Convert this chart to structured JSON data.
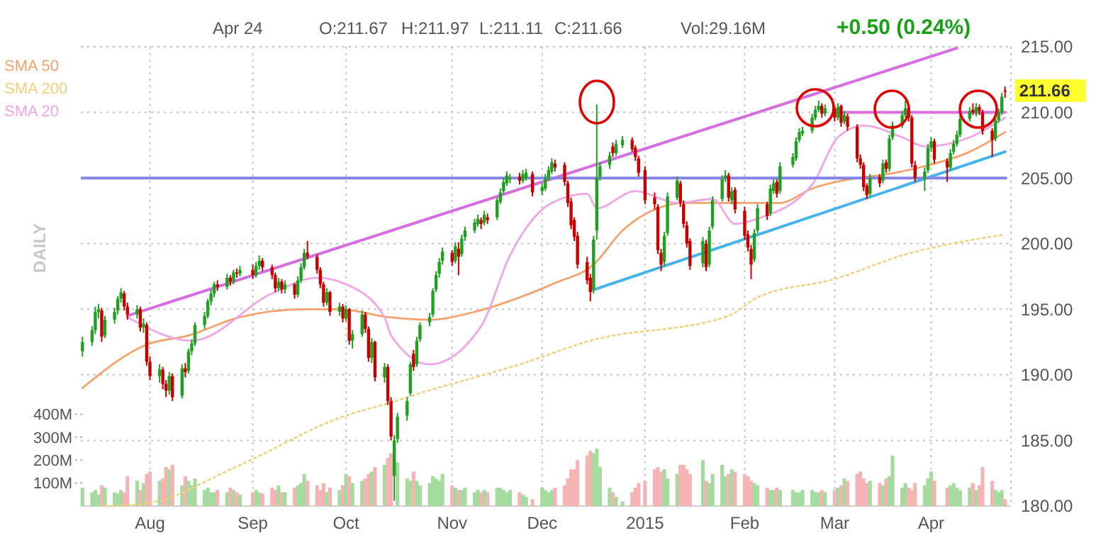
{
  "chart_data": {
    "type": "candlestick",
    "legend": "top left",
    "grid": true,
    "colors": [
      "#20a020",
      "#20a020",
      "#20a020",
      "#20a020",
      "#c80000",
      "#20a020",
      "#20a020",
      "#20a020",
      "#20a020",
      "#c80000",
      "#c80000",
      "#20a020",
      "#c80000",
      "#20a020",
      "#c80000",
      "#c80000",
      "#20a020",
      "#c80000",
      "#c80000",
      "#20a020",
      "#c80000",
      "#20a020",
      "#c80000",
      "#20a020",
      "#20a020",
      "#20a020",
      "#20a020",
      "#20a020",
      "#20a020",
      "#20a020",
      "#c80000",
      "#20a020",
      "#c80000",
      "#20a020",
      "#c80000",
      "#20a020",
      "#c80000",
      "#20a020",
      "#20a020",
      "#c80000",
      "#c80000",
      "#c80000",
      "#20a020",
      "#c80000",
      "#20a020",
      "#c80000",
      "#20a020",
      "#20a020",
      "#20a020",
      "#c80000",
      "#c80000",
      "#c80000",
      "#c80000",
      "#20a020",
      "#c80000",
      "#20a020",
      "#c80000",
      "#20a020",
      "#c80000",
      "#20a020",
      "#20a020",
      "#c80000",
      "#c80000",
      "#20a020",
      "#c80000",
      "#20a020",
      "#c80000",
      "#c80000",
      "#20a020",
      "#20a020",
      "#20a020",
      "#20a020",
      "#c80000",
      "#20a020",
      "#20a020",
      "#20a020",
      "#20a020",
      "#20a020",
      "#20a020",
      "#20a020",
      "#c80000",
      "#20a020",
      "#c80000",
      "#20a020",
      "#20a020",
      "#20a020",
      "#20a020",
      "#c80000",
      "#20a020",
      "#c80000",
      "#20a020",
      "#20a020",
      "#20a020",
      "#20a020",
      "#20a020",
      "#c80000",
      "#20a020",
      "#20a020",
      "#c80000",
      "#20a020",
      "#20a020",
      "#20a020",
      "#20a020",
      "#c80000",
      "#c80000",
      "#c80000",
      "#c80000",
      "#c80000",
      "#c80000",
      "#c80000",
      "#c80000",
      "#20a020",
      "#20a020",
      "#20a020",
      "#20a020",
      "#c80000",
      "#20a020",
      "#20a020",
      "#c80000",
      "#c80000",
      "#c80000",
      "#c80000",
      "#c80000",
      "#c80000",
      "#c80000",
      "#20a020",
      "#20a020",
      "#20a020",
      "#c80000",
      "#c80000",
      "#c80000",
      "#c80000",
      "#20a020",
      "#c80000",
      "#20a020",
      "#20a020",
      "#20a020",
      "#20a020",
      "#c80000",
      "#20a020",
      "#c80000",
      "#c80000",
      "#c80000",
      "#c80000",
      "#20a020",
      "#20a020",
      "#c80000",
      "#20a020",
      "#20a020",
      "#c80000",
      "#20a020",
      "#20a020",
      "#20a020",
      "#20a020",
      "#20a020",
      "#20a020",
      "#20a020",
      "#20a020",
      "#c80000",
      "#20a020",
      "#c80000",
      "#20a020",
      "#c80000",
      "#20a020",
      "#c80000",
      "#c80000",
      "#c80000",
      "#c80000",
      "#c80000",
      "#20a020",
      "#c80000",
      "#20a020",
      "#c80000",
      "#20a020",
      "#20a020",
      "#20a020",
      "#20a020",
      "#c80000",
      "#c80000",
      "#c80000",
      "#20a020",
      "#20a020",
      "#20a020",
      "#c80000",
      "#c80000",
      "#20a020",
      "#20a020",
      "#20a020",
      "#20a020",
      "#20a020",
      "#c80000",
      "#20a020",
      "#c80000",
      "#c80000",
      "#c80000",
      "#20a020",
      "#20a020",
      "#20a020",
      "#c80000"
    ],
    "annotations": [
      "Apr 24",
      "O:211.67",
      "H:211.97",
      "L:211.11",
      "C:211.66",
      "Vol:29.16M",
      "+0.50 (0.24%)",
      "DAILY",
      {
        "text": "211.66",
        "x": "2015-04-24",
        "y": 211.66
      }
    ],
    "xlim": [
      "2014-07-11",
      "2015-04-24"
    ],
    "xticks": [
      {
        "value": "2014-08-01",
        "label": "Aug"
      },
      {
        "value": "2014-09-02",
        "label": "Sep"
      },
      {
        "value": "2014-10-01",
        "label": "Oct"
      },
      {
        "value": "2014-11-03",
        "label": "Nov"
      },
      {
        "value": "2014-12-01",
        "label": "Dec"
      },
      {
        "value": "2015-01-02",
        "label": "2015"
      },
      {
        "value": "2015-02-02",
        "label": "Feb"
      },
      {
        "value": "2015-03-02",
        "label": "Mar"
      },
      {
        "value": "2015-04-01",
        "label": "Apr"
      }
    ],
    "ylim": [
      180,
      215
    ],
    "yticks": [
      {
        "value": 180,
        "label": "180.00"
      },
      {
        "value": 185,
        "label": "185.00"
      },
      {
        "value": 190,
        "label": "190.00"
      },
      {
        "value": 195,
        "label": "195.00"
      },
      {
        "value": 200,
        "label": "200.00"
      },
      {
        "value": 205,
        "label": "205.00"
      },
      {
        "value": 210,
        "label": "210.00"
      },
      {
        "value": 215,
        "label": "215.00"
      }
    ],
    "y2lim": [
      0,
      2000
    ],
    "y2ticks": [
      {
        "value": 100,
        "label": "100M"
      },
      {
        "value": 200,
        "label": "200M"
      },
      {
        "value": 300,
        "label": "300M"
      },
      {
        "value": 400,
        "label": "400M"
      }
    ],
    "ref_lines": [
      {
        "axis": "y",
        "value": 205,
        "color": "#8484e6"
      }
    ],
    "x": [
      "2014-07-11",
      "2014-07-14",
      "2014-07-15",
      "2014-07-16",
      "2014-07-17",
      "2014-07-18",
      "2014-07-21",
      "2014-07-22",
      "2014-07-23",
      "2014-07-24",
      "2014-07-25",
      "2014-07-28",
      "2014-07-29",
      "2014-07-30",
      "2014-07-31",
      "2014-08-01",
      "2014-08-04",
      "2014-08-05",
      "2014-08-06",
      "2014-08-07",
      "2014-08-08",
      "2014-08-11",
      "2014-08-12",
      "2014-08-13",
      "2014-08-14",
      "2014-08-15",
      "2014-08-18",
      "2014-08-19",
      "2014-08-20",
      "2014-08-21",
      "2014-08-22",
      "2014-08-25",
      "2014-08-26",
      "2014-08-27",
      "2014-08-28",
      "2014-08-29",
      "2014-09-02",
      "2014-09-03",
      "2014-09-04",
      "2014-09-05",
      "2014-09-08",
      "2014-09-09",
      "2014-09-10",
      "2014-09-11",
      "2014-09-12",
      "2014-09-15",
      "2014-09-16",
      "2014-09-17",
      "2014-09-18",
      "2014-09-19",
      "2014-09-22",
      "2014-09-23",
      "2014-09-24",
      "2014-09-25",
      "2014-09-26",
      "2014-09-29",
      "2014-09-30",
      "2014-10-01",
      "2014-10-02",
      "2014-10-03",
      "2014-10-06",
      "2014-10-07",
      "2014-10-08",
      "2014-10-09",
      "2014-10-10",
      "2014-10-13",
      "2014-10-14",
      "2014-10-15",
      "2014-10-16",
      "2014-10-17",
      "2014-10-20",
      "2014-10-21",
      "2014-10-22",
      "2014-10-23",
      "2014-10-24",
      "2014-10-27",
      "2014-10-28",
      "2014-10-29",
      "2014-10-30",
      "2014-10-31",
      "2014-11-03",
      "2014-11-04",
      "2014-11-05",
      "2014-11-06",
      "2014-11-07",
      "2014-11-10",
      "2014-11-11",
      "2014-11-12",
      "2014-11-13",
      "2014-11-14",
      "2014-11-17",
      "2014-11-18",
      "2014-11-19",
      "2014-11-20",
      "2014-11-21",
      "2014-11-24",
      "2014-11-25",
      "2014-11-26",
      "2014-11-28",
      "2014-12-01",
      "2014-12-02",
      "2014-12-03",
      "2014-12-04",
      "2014-12-05",
      "2014-12-08",
      "2014-12-09",
      "2014-12-10",
      "2014-12-11",
      "2014-12-12",
      "2014-12-15",
      "2014-12-16",
      "2014-12-17",
      "2014-12-18",
      "2014-12-19",
      "2014-12-22",
      "2014-12-23",
      "2014-12-24",
      "2014-12-26",
      "2014-12-29",
      "2014-12-30",
      "2014-12-31",
      "2015-01-02",
      "2015-01-05",
      "2015-01-06",
      "2015-01-07",
      "2015-01-08",
      "2015-01-09",
      "2015-01-12",
      "2015-01-13",
      "2015-01-14",
      "2015-01-15",
      "2015-01-16",
      "2015-01-20",
      "2015-01-21",
      "2015-01-22",
      "2015-01-23",
      "2015-01-26",
      "2015-01-27",
      "2015-01-28",
      "2015-01-29",
      "2015-01-30",
      "2015-02-02",
      "2015-02-03",
      "2015-02-04",
      "2015-02-05",
      "2015-02-06",
      "2015-02-09",
      "2015-02-10",
      "2015-02-11",
      "2015-02-12",
      "2015-02-13",
      "2015-02-17",
      "2015-02-18",
      "2015-02-19",
      "2015-02-20",
      "2015-02-23",
      "2015-02-24",
      "2015-02-25",
      "2015-02-26",
      "2015-02-27",
      "2015-03-02",
      "2015-03-03",
      "2015-03-04",
      "2015-03-05",
      "2015-03-06",
      "2015-03-09",
      "2015-03-10",
      "2015-03-11",
      "2015-03-12",
      "2015-03-13",
      "2015-03-16",
      "2015-03-17",
      "2015-03-18",
      "2015-03-19",
      "2015-03-20",
      "2015-03-23",
      "2015-03-24",
      "2015-03-25",
      "2015-03-26",
      "2015-03-27",
      "2015-03-30",
      "2015-03-31",
      "2015-04-01",
      "2015-04-02",
      "2015-04-06",
      "2015-04-07",
      "2015-04-08",
      "2015-04-09",
      "2015-04-10",
      "2015-04-13",
      "2015-04-14",
      "2015-04-15",
      "2015-04-16",
      "2015-04-17",
      "2015-04-20",
      "2015-04-21",
      "2015-04-22",
      "2015-04-23",
      "2015-04-24"
    ],
    "ohlc": [
      [
        191.8,
        192.9,
        191.4,
        192.5
      ],
      [
        192.5,
        193.7,
        192.2,
        193.4
      ],
      [
        193.4,
        195.2,
        193.1,
        194.8
      ],
      [
        194.8,
        195.4,
        194.3,
        195.0
      ],
      [
        194.9,
        195.1,
        192.5,
        192.9
      ],
      [
        193.0,
        194.5,
        192.8,
        194.2
      ],
      [
        194.2,
        195.1,
        193.9,
        194.8
      ],
      [
        194.9,
        196.0,
        194.6,
        195.8
      ],
      [
        195.8,
        196.6,
        195.5,
        196.3
      ],
      [
        196.2,
        196.4,
        194.9,
        195.2
      ],
      [
        195.2,
        195.5,
        194.2,
        194.6
      ],
      [
        194.6,
        195.3,
        194.3,
        195.0
      ],
      [
        195.0,
        195.2,
        193.3,
        193.6
      ],
      [
        193.6,
        194.3,
        193.2,
        193.9
      ],
      [
        193.8,
        194.0,
        190.7,
        191.0
      ],
      [
        191.0,
        191.4,
        189.6,
        189.9
      ],
      [
        189.9,
        190.8,
        189.4,
        190.4
      ],
      [
        190.4,
        190.6,
        188.9,
        189.3
      ],
      [
        189.3,
        189.6,
        188.3,
        188.8
      ],
      [
        188.8,
        190.2,
        188.5,
        189.9
      ],
      [
        189.9,
        190.1,
        188.0,
        188.3
      ],
      [
        188.4,
        190.8,
        188.2,
        190.5
      ],
      [
        190.5,
        190.9,
        189.8,
        190.2
      ],
      [
        190.3,
        192.0,
        190.1,
        191.8
      ],
      [
        191.8,
        192.7,
        191.5,
        192.4
      ],
      [
        192.4,
        194.0,
        192.2,
        193.8
      ],
      [
        193.8,
        194.8,
        193.5,
        194.5
      ],
      [
        194.5,
        195.8,
        194.3,
        195.6
      ],
      [
        195.6,
        196.5,
        195.3,
        196.2
      ],
      [
        196.2,
        197.1,
        195.9,
        196.9
      ],
      [
        196.9,
        197.2,
        196.4,
        196.7
      ],
      [
        196.7,
        197.7,
        196.5,
        197.4
      ],
      [
        197.4,
        197.6,
        196.8,
        197.1
      ],
      [
        197.1,
        198.0,
        196.9,
        197.8
      ],
      [
        197.8,
        198.1,
        197.4,
        197.7
      ],
      [
        197.7,
        198.3,
        197.5,
        198.0
      ],
      [
        198.0,
        198.4,
        197.3,
        197.6
      ],
      [
        197.6,
        198.6,
        197.4,
        198.3
      ],
      [
        198.3,
        199.1,
        198.0,
        198.7
      ],
      [
        198.7,
        198.9,
        197.9,
        198.2
      ],
      [
        198.2,
        198.4,
        197.3,
        197.6
      ],
      [
        197.6,
        197.8,
        196.3,
        196.6
      ],
      [
        196.6,
        197.4,
        196.4,
        197.1
      ],
      [
        197.1,
        197.3,
        196.2,
        196.5
      ],
      [
        196.5,
        197.2,
        196.2,
        196.9
      ],
      [
        196.9,
        197.0,
        195.8,
        196.1
      ],
      [
        196.1,
        197.5,
        195.9,
        197.2
      ],
      [
        197.2,
        198.5,
        197.0,
        198.2
      ],
      [
        198.2,
        199.6,
        198.0,
        199.3
      ],
      [
        199.3,
        200.2,
        198.8,
        199.0
      ],
      [
        199.0,
        199.2,
        197.7,
        198.0
      ],
      [
        198.0,
        198.2,
        196.6,
        196.9
      ],
      [
        196.9,
        197.1,
        195.2,
        195.5
      ],
      [
        195.5,
        196.6,
        195.3,
        196.3
      ],
      [
        196.3,
        196.4,
        194.5,
        194.8
      ],
      [
        194.8,
        195.5,
        194.5,
        195.2
      ],
      [
        195.2,
        195.4,
        194.0,
        194.3
      ],
      [
        194.3,
        195.3,
        194.1,
        195.0
      ],
      [
        195.0,
        195.1,
        192.3,
        192.6
      ],
      [
        192.6,
        193.4,
        192.0,
        193.1
      ],
      [
        193.1,
        194.9,
        192.9,
        194.6
      ],
      [
        194.6,
        194.8,
        193.2,
        193.5
      ],
      [
        193.5,
        193.7,
        191.0,
        191.3
      ],
      [
        191.3,
        192.8,
        190.9,
        192.5
      ],
      [
        192.5,
        192.6,
        189.5,
        189.8
      ],
      [
        189.8,
        190.9,
        189.4,
        190.6
      ],
      [
        190.6,
        190.8,
        187.7,
        188.0
      ],
      [
        188.0,
        188.3,
        185.0,
        185.3
      ],
      [
        182.3,
        185.4,
        180.4,
        185.0
      ],
      [
        185.1,
        187.1,
        184.8,
        186.8
      ],
      [
        186.9,
        188.3,
        186.5,
        188.0
      ],
      [
        188.6,
        191.0,
        188.4,
        190.8
      ],
      [
        191.6,
        191.9,
        190.3,
        190.6
      ],
      [
        190.8,
        192.9,
        190.6,
        192.6
      ],
      [
        192.7,
        194.0,
        192.5,
        193.8
      ],
      [
        194.0,
        194.7,
        193.7,
        194.4
      ],
      [
        194.6,
        196.6,
        194.4,
        196.4
      ],
      [
        196.5,
        197.9,
        196.3,
        197.6
      ],
      [
        197.7,
        198.9,
        197.4,
        198.6
      ],
      [
        198.7,
        199.7,
        198.4,
        199.4
      ],
      [
        199.3,
        199.5,
        198.3,
        198.6
      ],
      [
        198.7,
        200.1,
        198.5,
        199.8
      ],
      [
        199.6,
        200.1,
        197.6,
        199.0
      ],
      [
        199.2,
        200.7,
        199.0,
        200.4
      ],
      [
        200.5,
        201.3,
        200.2,
        201.0
      ],
      [
        201.0,
        201.9,
        200.8,
        201.6
      ],
      [
        201.5,
        202.2,
        201.3,
        201.9
      ],
      [
        201.8,
        202.0,
        201.1,
        201.5
      ],
      [
        201.6,
        202.5,
        201.4,
        202.2
      ],
      [
        202.0,
        202.3,
        201.5,
        201.8
      ],
      [
        202.0,
        203.5,
        201.8,
        203.3
      ],
      [
        203.2,
        204.2,
        203.0,
        203.9
      ],
      [
        204.0,
        205.0,
        203.8,
        204.7
      ],
      [
        204.6,
        205.5,
        204.4,
        205.2
      ],
      [
        204.9,
        205.3,
        204.6,
        205.0
      ],
      [
        205.1,
        205.4,
        204.5,
        204.8
      ],
      [
        204.8,
        205.6,
        204.6,
        205.3
      ],
      [
        205.0,
        205.7,
        204.8,
        205.4
      ],
      [
        205.3,
        205.5,
        203.6,
        203.9
      ],
      [
        204.0,
        204.6,
        203.7,
        204.3
      ],
      [
        204.2,
        205.3,
        204.0,
        205.0
      ],
      [
        205.0,
        205.9,
        204.8,
        205.6
      ],
      [
        205.5,
        206.5,
        205.3,
        206.2
      ],
      [
        206.1,
        206.4,
        205.5,
        205.8
      ],
      [
        206.0,
        206.2,
        204.4,
        204.7
      ],
      [
        204.6,
        204.8,
        202.8,
        203.1
      ],
      [
        203.2,
        203.5,
        201.1,
        201.4
      ],
      [
        201.8,
        202.0,
        200.2,
        200.5
      ],
      [
        200.6,
        200.9,
        198.1,
        198.4
      ],
      [
        198.6,
        199.0,
        196.9,
        197.2
      ],
      [
        197.4,
        197.7,
        195.6,
        196.3
      ],
      [
        196.5,
        200.6,
        196.2,
        200.3
      ],
      [
        201.0,
        210.6,
        200.3,
        205.0
      ],
      [
        205.1,
        206.2,
        204.8,
        205.9
      ],
      [
        206.0,
        207.0,
        205.7,
        206.7
      ],
      [
        207.4,
        207.7,
        206.6,
        206.9
      ],
      [
        206.9,
        207.9,
        206.7,
        207.6
      ],
      [
        207.5,
        208.2,
        207.3,
        207.9
      ],
      [
        207.9,
        208.1,
        207.0,
        207.2
      ],
      [
        207.3,
        207.5,
        206.3,
        206.6
      ],
      [
        206.5,
        206.7,
        205.1,
        205.4
      ],
      [
        205.6,
        205.9,
        203.0,
        203.3
      ],
      [
        203.5,
        203.9,
        202.6,
        203.0
      ],
      [
        202.8,
        203.0,
        199.2,
        199.5
      ],
      [
        199.3,
        199.6,
        197.9,
        198.4
      ],
      [
        198.6,
        200.9,
        198.3,
        200.6
      ],
      [
        200.8,
        203.9,
        200.6,
        203.6
      ],
      [
        203.5,
        205.1,
        203.3,
        204.8
      ],
      [
        204.6,
        204.8,
        202.8,
        203.1
      ],
      [
        203.0,
        203.3,
        201.2,
        201.5
      ],
      [
        201.4,
        201.7,
        199.7,
        200.0
      ],
      [
        200.2,
        200.4,
        198.0,
        198.3
      ],
      [
        198.5,
        200.5,
        198.2,
        200.2
      ],
      [
        200.0,
        200.3,
        197.9,
        198.2
      ],
      [
        198.4,
        201.3,
        198.2,
        201.0
      ],
      [
        201.3,
        203.6,
        201.1,
        203.3
      ],
      [
        203.4,
        205.2,
        203.2,
        204.9
      ],
      [
        205.0,
        205.6,
        204.7,
        205.2
      ],
      [
        205.2,
        205.4,
        203.2,
        203.5
      ],
      [
        203.3,
        204.3,
        203.0,
        204.0
      ],
      [
        204.1,
        204.3,
        202.3,
        202.6
      ],
      [
        202.5,
        202.8,
        200.3,
        200.6
      ],
      [
        200.7,
        201.0,
        199.4,
        199.7
      ],
      [
        199.6,
        199.9,
        197.3,
        198.4
      ],
      [
        198.8,
        201.1,
        198.6,
        200.8
      ],
      [
        201.0,
        203.0,
        200.8,
        202.7
      ],
      [
        203.0,
        203.2,
        201.8,
        202.1
      ],
      [
        202.3,
        204.5,
        202.1,
        204.2
      ],
      [
        204.0,
        204.9,
        203.8,
        204.6
      ],
      [
        204.7,
        204.9,
        203.5,
        203.8
      ],
      [
        204.0,
        206.2,
        203.8,
        205.9
      ],
      [
        206.0,
        206.9,
        205.8,
        206.6
      ],
      [
        206.5,
        208.1,
        206.3,
        207.8
      ],
      [
        207.9,
        208.8,
        207.7,
        208.5
      ],
      [
        208.4,
        208.9,
        208.2,
        208.6
      ],
      [
        208.6,
        209.9,
        208.4,
        209.6
      ],
      [
        209.6,
        210.5,
        209.4,
        210.2
      ],
      [
        210.2,
        210.9,
        210.0,
        210.5
      ],
      [
        210.5,
        210.7,
        209.6,
        209.9
      ],
      [
        209.9,
        210.6,
        209.7,
        210.3
      ],
      [
        210.3,
        210.5,
        209.3,
        209.6
      ],
      [
        209.6,
        210.7,
        209.4,
        210.4
      ],
      [
        210.5,
        210.6,
        208.9,
        209.2
      ],
      [
        209.3,
        210.1,
        209.1,
        209.8
      ],
      [
        209.7,
        209.9,
        208.6,
        208.9
      ],
      [
        208.9,
        209.1,
        206.2,
        206.5
      ],
      [
        206.5,
        206.8,
        205.7,
        206.0
      ],
      [
        206.0,
        206.2,
        204.0,
        204.3
      ],
      [
        204.4,
        204.6,
        203.4,
        203.7
      ],
      [
        203.8,
        205.3,
        203.6,
        205.0
      ],
      [
        205.1,
        205.3,
        204.3,
        204.6
      ],
      [
        204.8,
        206.4,
        204.6,
        206.1
      ],
      [
        206.2,
        206.4,
        205.4,
        205.7
      ],
      [
        205.7,
        208.3,
        205.5,
        208.0
      ],
      [
        208.1,
        209.3,
        207.9,
        209.0
      ],
      [
        209.0,
        210.1,
        208.8,
        209.8
      ],
      [
        209.8,
        210.9,
        209.6,
        210.3
      ],
      [
        210.3,
        210.5,
        209.3,
        209.6
      ],
      [
        209.6,
        209.8,
        205.8,
        206.1
      ],
      [
        206.0,
        206.3,
        204.7,
        205.0
      ],
      [
        204.9,
        205.8,
        204.0,
        205.5
      ],
      [
        205.6,
        207.6,
        205.4,
        207.3
      ],
      [
        207.3,
        208.1,
        207.0,
        207.8
      ],
      [
        207.8,
        208.0,
        206.1,
        206.4
      ],
      [
        206.3,
        206.5,
        204.7,
        205.8
      ],
      [
        205.8,
        207.2,
        205.6,
        206.9
      ],
      [
        207.0,
        207.9,
        206.8,
        207.6
      ],
      [
        207.6,
        208.6,
        207.4,
        208.3
      ],
      [
        208.3,
        209.8,
        208.1,
        209.5
      ],
      [
        209.5,
        210.4,
        209.3,
        210.1
      ],
      [
        210.2,
        210.7,
        209.8,
        210.0
      ],
      [
        209.9,
        210.7,
        209.7,
        210.4
      ],
      [
        210.4,
        210.6,
        209.8,
        210.1
      ],
      [
        210.0,
        210.2,
        208.3,
        208.6
      ],
      [
        208.6,
        208.8,
        206.6,
        207.9
      ],
      [
        208.0,
        209.7,
        207.8,
        209.4
      ],
      [
        209.4,
        210.3,
        209.2,
        210.0
      ],
      [
        210.0,
        211.5,
        209.8,
        211.2
      ],
      [
        211.67,
        211.97,
        211.11,
        211.66
      ]
    ],
    "series": [
      {
        "type": "bar",
        "axis": "y2",
        "values": [
          80,
          60,
          70,
          50,
          90,
          80,
          60,
          55,
          70,
          60,
          130,
          110,
          70,
          100,
          140,
          150,
          110,
          120,
          170,
          160,
          180,
          90,
          130,
          110,
          90,
          120,
          70,
          80,
          60,
          60,
          70,
          60,
          80,
          70,
          60,
          50,
          60,
          70,
          60,
          55,
          80,
          70,
          90,
          60,
          60,
          80,
          90,
          100,
          140,
          110,
          90,
          70,
          100,
          60,
          80,
          70,
          90,
          140,
          130,
          100,
          110,
          120,
          140,
          150,
          170,
          180,
          210,
          230,
          null,
          190,
          120,
          110,
          150,
          110,
          90,
          100,
          130,
          120,
          110,
          140,
          90,
          80,
          70,
          70,
          80,
          60,
          70,
          60,
          70,
          60,
          80,
          80,
          70,
          60,
          70,
          60,
          50,
          40,
          30,
          80,
          70,
          60,
          70,
          80,
          90,
          120,
          160,
          160,
          200,
          220,
          240,
          230,
          250,
          170,
          80,
          60,
          40,
          20,
          60,
          80,
          100,
          110,
          160,
          170,
          150,
          160,
          120,
          140,
          180,
          180,
          160,
          140,
          200,
          110,
          100,
          140,
          180,
          130,
          140,
          160,
          150,
          140,
          130,
          110,
          100,
          90,
          80,
          70,
          70,
          80,
          70,
          70,
          60,
          60,
          70,
          70,
          60,
          60,
          70,
          60,
          70,
          80,
          90,
          120,
          110,
          140,
          150,
          120,
          100,
          110,
          100,
          90,
          120,
          130,
          220,
          80,
          100,
          80,
          70,
          100,
          90,
          120,
          150,
          110,
          80,
          90,
          100,
          80,
          70,
          80,
          100,
          70,
          90,
          170,
          110,
          70,
          60,
          70,
          30
        ],
        "colors": [
          "#a6dba0",
          "#a6dba0",
          "#a6dba0",
          "#a6dba0",
          "#f5b3b3",
          "#a6dba0",
          "#a6dba0",
          "#a6dba0",
          "#a6dba0",
          "#f5b3b3",
          "#f5b3b3",
          "#a6dba0",
          "#f5b3b3",
          "#a6dba0",
          "#f5b3b3",
          "#f5b3b3",
          "#a6dba0",
          "#f5b3b3",
          "#f5b3b3",
          "#a6dba0",
          "#f5b3b3",
          "#a6dba0",
          "#f5b3b3",
          "#a6dba0",
          "#a6dba0",
          "#a6dba0",
          "#a6dba0",
          "#a6dba0",
          "#a6dba0",
          "#a6dba0",
          "#f5b3b3",
          "#a6dba0",
          "#f5b3b3",
          "#a6dba0",
          "#f5b3b3",
          "#a6dba0",
          "#f5b3b3",
          "#a6dba0",
          "#a6dba0",
          "#f5b3b3",
          "#f5b3b3",
          "#f5b3b3",
          "#a6dba0",
          "#f5b3b3",
          "#a6dba0",
          "#f5b3b3",
          "#a6dba0",
          "#a6dba0",
          "#a6dba0",
          "#f5b3b3",
          "#f5b3b3",
          "#f5b3b3",
          "#f5b3b3",
          "#a6dba0",
          "#f5b3b3",
          "#a6dba0",
          "#f5b3b3",
          "#a6dba0",
          "#f5b3b3",
          "#a6dba0",
          "#a6dba0",
          "#f5b3b3",
          "#f5b3b3",
          "#a6dba0",
          "#f5b3b3",
          "#a6dba0",
          "#f5b3b3",
          "#f5b3b3",
          null,
          "#a6dba0",
          "#a6dba0",
          "#a6dba0",
          "#f5b3b3",
          "#a6dba0",
          "#a6dba0",
          "#a6dba0",
          "#a6dba0",
          "#a6dba0",
          "#a6dba0",
          "#a6dba0",
          "#f5b3b3",
          "#a6dba0",
          "#f5b3b3",
          "#a6dba0",
          "#a6dba0",
          "#a6dba0",
          "#a6dba0",
          "#f5b3b3",
          "#a6dba0",
          "#f5b3b3",
          "#a6dba0",
          "#a6dba0",
          "#a6dba0",
          "#a6dba0",
          "#a6dba0",
          "#f5b3b3",
          "#a6dba0",
          "#a6dba0",
          "#f5b3b3",
          "#a6dba0",
          "#a6dba0",
          "#a6dba0",
          "#a6dba0",
          "#f5b3b3",
          "#f5b3b3",
          "#f5b3b3",
          "#f5b3b3",
          "#f5b3b3",
          "#f5b3b3",
          "#f5b3b3",
          "#f5b3b3",
          "#a6dba0",
          "#a6dba0",
          "#a6dba0",
          "#a6dba0",
          "#f5b3b3",
          "#a6dba0",
          "#a6dba0",
          "#f5b3b3",
          "#f5b3b3",
          "#f5b3b3",
          "#f5b3b3",
          "#f5b3b3",
          "#f5b3b3",
          "#f5b3b3",
          "#a6dba0",
          "#a6dba0",
          "#a6dba0",
          "#f5b3b3",
          "#f5b3b3",
          "#f5b3b3",
          "#f5b3b3",
          "#a6dba0",
          "#f5b3b3",
          "#a6dba0",
          "#a6dba0",
          "#a6dba0",
          "#a6dba0",
          "#f5b3b3",
          "#a6dba0",
          "#f5b3b3",
          "#f5b3b3",
          "#f5b3b3",
          "#f5b3b3",
          "#a6dba0",
          "#a6dba0",
          "#f5b3b3",
          "#a6dba0",
          "#a6dba0",
          "#f5b3b3",
          "#a6dba0",
          "#a6dba0",
          "#a6dba0",
          "#a6dba0",
          "#a6dba0",
          "#a6dba0",
          "#a6dba0",
          "#a6dba0",
          "#f5b3b3",
          "#a6dba0",
          "#f5b3b3",
          "#a6dba0",
          "#f5b3b3",
          "#a6dba0",
          "#f5b3b3",
          "#f5b3b3",
          "#f5b3b3",
          "#f5b3b3",
          "#f5b3b3",
          "#a6dba0",
          "#f5b3b3",
          "#a6dba0",
          "#f5b3b3",
          "#a6dba0",
          "#a6dba0",
          "#a6dba0",
          "#a6dba0",
          "#f5b3b3",
          "#f5b3b3",
          "#f5b3b3",
          "#a6dba0",
          "#a6dba0",
          "#a6dba0",
          "#f5b3b3",
          "#f5b3b3",
          "#a6dba0",
          "#a6dba0",
          "#a6dba0",
          "#a6dba0",
          "#a6dba0",
          "#f5b3b3",
          "#a6dba0",
          "#f5b3b3",
          "#f5b3b3",
          "#f5b3b3",
          "#a6dba0",
          "#a6dba0",
          "#a6dba0",
          "#f5b3b3"
        ]
      },
      {
        "name": "SMA 50",
        "type": "line",
        "color": "#f5a36c",
        "line_style": "solid",
        "x": [
          "2014-07-11",
          "2014-07-31",
          "2014-08-13",
          "2014-08-29",
          "2014-09-18",
          "2014-09-29",
          "2014-10-14",
          "2014-10-27",
          "2014-11-10",
          "2014-11-24",
          "2014-12-05",
          "2014-12-17",
          "2014-12-26",
          "2015-01-06",
          "2015-01-14",
          "2015-01-27",
          "2015-02-13",
          "2015-02-23",
          "2015-03-09",
          "2015-03-16",
          "2015-03-30",
          "2015-04-13",
          "2015-04-24"
        ],
        "values": [
          189.0,
          192.3,
          193.0,
          194.4,
          195.0,
          195.0,
          194.4,
          194.2,
          194.8,
          195.9,
          197.0,
          198.4,
          201.0,
          202.7,
          203.1,
          203.1,
          203.1,
          204.2,
          205.0,
          205.2,
          205.9,
          207.0,
          208.5
        ]
      },
      {
        "name": "SMA 200",
        "type": "line",
        "color": "#f2cf7a",
        "line_style": "dotted",
        "x": [
          "2014-07-18",
          "2014-07-31",
          "2014-08-27",
          "2014-10-01",
          "2014-10-15",
          "2014-10-24",
          "2014-11-24",
          "2014-12-16",
          "2015-01-28",
          "2015-02-06",
          "2015-03-02",
          "2015-03-23",
          "2015-04-24"
        ],
        "values": [
          180.0,
          180.2,
          182.9,
          186.9,
          187.9,
          188.6,
          190.8,
          192.6,
          194.5,
          195.9,
          197.3,
          199.1,
          200.7
        ]
      },
      {
        "name": "SMA 20",
        "type": "line",
        "color": "#f0a6e6",
        "line_style": "solid",
        "x": [
          "2014-07-25",
          "2014-08-14",
          "2014-09-08",
          "2014-09-22",
          "2014-10-01",
          "2014-10-13",
          "2014-10-15",
          "2014-10-27",
          "2014-11-12",
          "2014-11-21",
          "2014-12-04",
          "2014-12-15",
          "2014-12-18",
          "2014-12-30",
          "2015-01-12",
          "2015-01-23",
          "2015-01-30",
          "2015-02-06",
          "2015-02-23",
          "2015-03-03",
          "2015-03-11",
          "2015-03-23",
          "2015-03-30",
          "2015-04-13",
          "2015-04-24"
        ],
        "values": [
          194.4,
          192.6,
          196.2,
          197.4,
          196.9,
          194.4,
          193.0,
          190.8,
          193.7,
          199.1,
          203.1,
          203.8,
          202.7,
          204.0,
          203.1,
          203.4,
          201.5,
          201.9,
          204.5,
          208.1,
          209.0,
          208.1,
          207.4,
          208.1,
          209.6
        ]
      },
      {
        "type": "line",
        "color": "#d66ee0",
        "line_style": "solid",
        "x": [
          "2014-07-25",
          "2015-04-09"
        ],
        "values": [
          194.5,
          214.9
        ]
      },
      {
        "type": "line",
        "color": "#46b4ea",
        "line_style": "solid",
        "x": [
          "2014-12-16",
          "2015-04-24"
        ],
        "values": [
          196.4,
          207.0
        ]
      },
      {
        "type": "line",
        "color": "#d66ee0",
        "line_style": "solid",
        "x": [
          "2015-03-02",
          "2015-04-24"
        ],
        "values": [
          210,
          210
        ]
      }
    ]
  }
}
